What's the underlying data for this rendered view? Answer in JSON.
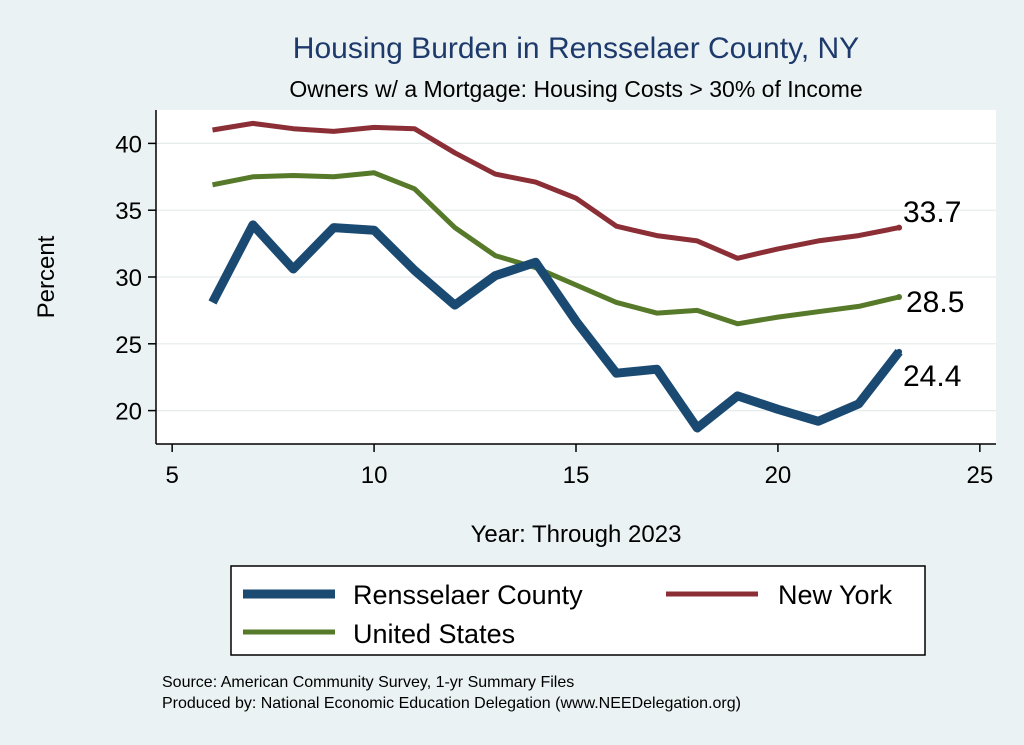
{
  "chart_data": {
    "type": "line",
    "title": "Housing Burden in Rensselaer County, NY",
    "subtitle": "Owners w/ a Mortgage: Housing Costs > 30% of Income",
    "xlabel": "Year: Through 2023",
    "ylabel": "Percent",
    "xlim": [
      4.6,
      25.4
    ],
    "ylim": [
      17.5,
      42.5
    ],
    "xticks": [
      5,
      10,
      15,
      20,
      25
    ],
    "yticks": [
      20,
      25,
      30,
      35,
      40
    ],
    "x": [
      6,
      7,
      8,
      9,
      10,
      11,
      12,
      13,
      14,
      15,
      16,
      17,
      18,
      19,
      20,
      21,
      22,
      23
    ],
    "series": [
      {
        "name": "Rensselaer County",
        "color": "#1a4a72",
        "values": [
          28.1,
          33.9,
          30.6,
          33.7,
          33.5,
          30.5,
          27.9,
          30.1,
          31.1,
          26.7,
          22.8,
          23.1,
          18.7,
          21.1,
          20.1,
          19.2,
          20.5,
          24.4
        ],
        "end_label": "24.4"
      },
      {
        "name": "New York",
        "color": "#8b2e35",
        "values": [
          41.0,
          41.5,
          41.1,
          40.9,
          41.2,
          41.1,
          39.3,
          37.7,
          37.1,
          35.9,
          33.8,
          33.1,
          32.7,
          31.4,
          32.1,
          32.7,
          33.1,
          33.7
        ],
        "end_label": "33.7"
      },
      {
        "name": "United States",
        "color": "#56792a",
        "values": [
          36.9,
          37.5,
          37.6,
          37.5,
          37.8,
          36.6,
          33.7,
          31.6,
          30.7,
          29.4,
          28.1,
          27.3,
          27.5,
          26.5,
          27.0,
          27.4,
          27.8,
          28.5
        ],
        "end_label": "28.5"
      }
    ]
  },
  "legend": {
    "items": [
      "Rensselaer County",
      "New York",
      "United States"
    ]
  },
  "source": {
    "line1": "Source: American Community Survey, 1-yr Summary Files",
    "line2": "Produced by: National Economic Education Delegation (www.NEEDelegation.org)"
  }
}
